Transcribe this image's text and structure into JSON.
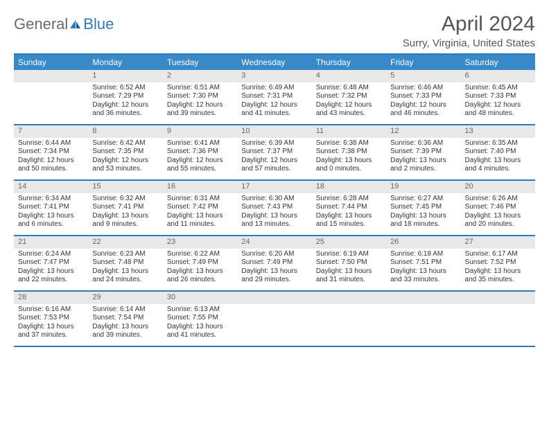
{
  "logo": {
    "text1": "General",
    "text2": "Blue"
  },
  "title": "April 2024",
  "location": "Surry, Virginia, United States",
  "colors": {
    "header_bg": "#3889c7",
    "border": "#2c7bbf",
    "daynum_bg": "#e8e8e8",
    "text": "#333333",
    "title_text": "#555555"
  },
  "day_names": [
    "Sunday",
    "Monday",
    "Tuesday",
    "Wednesday",
    "Thursday",
    "Friday",
    "Saturday"
  ],
  "weeks": [
    [
      null,
      {
        "n": "1",
        "sr": "Sunrise: 6:52 AM",
        "ss": "Sunset: 7:29 PM",
        "dl": "Daylight: 12 hours and 36 minutes."
      },
      {
        "n": "2",
        "sr": "Sunrise: 6:51 AM",
        "ss": "Sunset: 7:30 PM",
        "dl": "Daylight: 12 hours and 39 minutes."
      },
      {
        "n": "3",
        "sr": "Sunrise: 6:49 AM",
        "ss": "Sunset: 7:31 PM",
        "dl": "Daylight: 12 hours and 41 minutes."
      },
      {
        "n": "4",
        "sr": "Sunrise: 6:48 AM",
        "ss": "Sunset: 7:32 PM",
        "dl": "Daylight: 12 hours and 43 minutes."
      },
      {
        "n": "5",
        "sr": "Sunrise: 6:46 AM",
        "ss": "Sunset: 7:33 PM",
        "dl": "Daylight: 12 hours and 46 minutes."
      },
      {
        "n": "6",
        "sr": "Sunrise: 6:45 AM",
        "ss": "Sunset: 7:33 PM",
        "dl": "Daylight: 12 hours and 48 minutes."
      }
    ],
    [
      {
        "n": "7",
        "sr": "Sunrise: 6:44 AM",
        "ss": "Sunset: 7:34 PM",
        "dl": "Daylight: 12 hours and 50 minutes."
      },
      {
        "n": "8",
        "sr": "Sunrise: 6:42 AM",
        "ss": "Sunset: 7:35 PM",
        "dl": "Daylight: 12 hours and 53 minutes."
      },
      {
        "n": "9",
        "sr": "Sunrise: 6:41 AM",
        "ss": "Sunset: 7:36 PM",
        "dl": "Daylight: 12 hours and 55 minutes."
      },
      {
        "n": "10",
        "sr": "Sunrise: 6:39 AM",
        "ss": "Sunset: 7:37 PM",
        "dl": "Daylight: 12 hours and 57 minutes."
      },
      {
        "n": "11",
        "sr": "Sunrise: 6:38 AM",
        "ss": "Sunset: 7:38 PM",
        "dl": "Daylight: 13 hours and 0 minutes."
      },
      {
        "n": "12",
        "sr": "Sunrise: 6:36 AM",
        "ss": "Sunset: 7:39 PM",
        "dl": "Daylight: 13 hours and 2 minutes."
      },
      {
        "n": "13",
        "sr": "Sunrise: 6:35 AM",
        "ss": "Sunset: 7:40 PM",
        "dl": "Daylight: 13 hours and 4 minutes."
      }
    ],
    [
      {
        "n": "14",
        "sr": "Sunrise: 6:34 AM",
        "ss": "Sunset: 7:41 PM",
        "dl": "Daylight: 13 hours and 6 minutes."
      },
      {
        "n": "15",
        "sr": "Sunrise: 6:32 AM",
        "ss": "Sunset: 7:41 PM",
        "dl": "Daylight: 13 hours and 9 minutes."
      },
      {
        "n": "16",
        "sr": "Sunrise: 6:31 AM",
        "ss": "Sunset: 7:42 PM",
        "dl": "Daylight: 13 hours and 11 minutes."
      },
      {
        "n": "17",
        "sr": "Sunrise: 6:30 AM",
        "ss": "Sunset: 7:43 PM",
        "dl": "Daylight: 13 hours and 13 minutes."
      },
      {
        "n": "18",
        "sr": "Sunrise: 6:28 AM",
        "ss": "Sunset: 7:44 PM",
        "dl": "Daylight: 13 hours and 15 minutes."
      },
      {
        "n": "19",
        "sr": "Sunrise: 6:27 AM",
        "ss": "Sunset: 7:45 PM",
        "dl": "Daylight: 13 hours and 18 minutes."
      },
      {
        "n": "20",
        "sr": "Sunrise: 6:26 AM",
        "ss": "Sunset: 7:46 PM",
        "dl": "Daylight: 13 hours and 20 minutes."
      }
    ],
    [
      {
        "n": "21",
        "sr": "Sunrise: 6:24 AM",
        "ss": "Sunset: 7:47 PM",
        "dl": "Daylight: 13 hours and 22 minutes."
      },
      {
        "n": "22",
        "sr": "Sunrise: 6:23 AM",
        "ss": "Sunset: 7:48 PM",
        "dl": "Daylight: 13 hours and 24 minutes."
      },
      {
        "n": "23",
        "sr": "Sunrise: 6:22 AM",
        "ss": "Sunset: 7:49 PM",
        "dl": "Daylight: 13 hours and 26 minutes."
      },
      {
        "n": "24",
        "sr": "Sunrise: 6:20 AM",
        "ss": "Sunset: 7:49 PM",
        "dl": "Daylight: 13 hours and 29 minutes."
      },
      {
        "n": "25",
        "sr": "Sunrise: 6:19 AM",
        "ss": "Sunset: 7:50 PM",
        "dl": "Daylight: 13 hours and 31 minutes."
      },
      {
        "n": "26",
        "sr": "Sunrise: 6:18 AM",
        "ss": "Sunset: 7:51 PM",
        "dl": "Daylight: 13 hours and 33 minutes."
      },
      {
        "n": "27",
        "sr": "Sunrise: 6:17 AM",
        "ss": "Sunset: 7:52 PM",
        "dl": "Daylight: 13 hours and 35 minutes."
      }
    ],
    [
      {
        "n": "28",
        "sr": "Sunrise: 6:16 AM",
        "ss": "Sunset: 7:53 PM",
        "dl": "Daylight: 13 hours and 37 minutes."
      },
      {
        "n": "29",
        "sr": "Sunrise: 6:14 AM",
        "ss": "Sunset: 7:54 PM",
        "dl": "Daylight: 13 hours and 39 minutes."
      },
      {
        "n": "30",
        "sr": "Sunrise: 6:13 AM",
        "ss": "Sunset: 7:55 PM",
        "dl": "Daylight: 13 hours and 41 minutes."
      },
      null,
      null,
      null,
      null
    ]
  ]
}
